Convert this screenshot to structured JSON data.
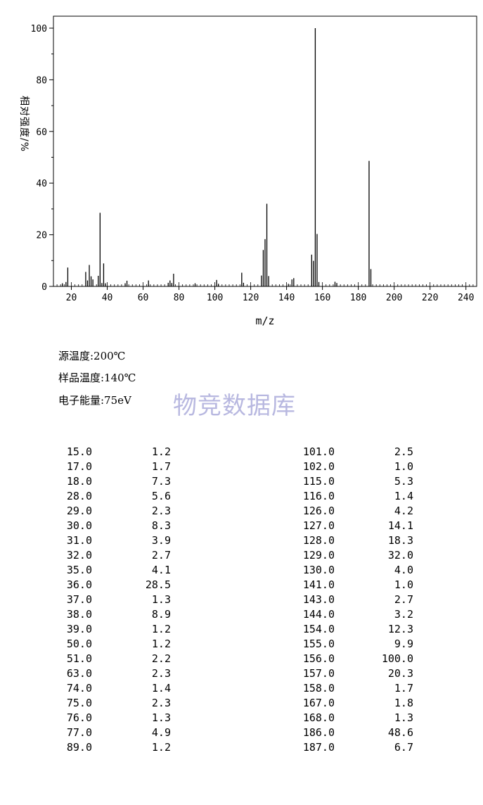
{
  "chart_data": {
    "type": "bar",
    "xlabel": "m/z",
    "ylabel": "相对强度/%",
    "xlim": [
      10,
      246
    ],
    "ylim": [
      0,
      105
    ],
    "xticks": [
      20,
      40,
      60,
      80,
      100,
      120,
      140,
      160,
      180,
      200,
      220,
      240
    ],
    "yticks": [
      0,
      20,
      40,
      60,
      80,
      100
    ],
    "peaks": [
      [
        15.0,
        1.2
      ],
      [
        17.0,
        1.7
      ],
      [
        18.0,
        7.3
      ],
      [
        28.0,
        5.6
      ],
      [
        29.0,
        2.3
      ],
      [
        30.0,
        8.3
      ],
      [
        31.0,
        3.9
      ],
      [
        32.0,
        2.7
      ],
      [
        35.0,
        4.1
      ],
      [
        36.0,
        28.5
      ],
      [
        37.0,
        1.3
      ],
      [
        38.0,
        8.9
      ],
      [
        39.0,
        1.2
      ],
      [
        50.0,
        1.2
      ],
      [
        51.0,
        2.2
      ],
      [
        63.0,
        2.3
      ],
      [
        74.0,
        1.4
      ],
      [
        75.0,
        2.3
      ],
      [
        76.0,
        1.3
      ],
      [
        77.0,
        4.9
      ],
      [
        89.0,
        1.2
      ],
      [
        101.0,
        2.5
      ],
      [
        102.0,
        1.0
      ],
      [
        115.0,
        5.3
      ],
      [
        116.0,
        1.4
      ],
      [
        126.0,
        4.2
      ],
      [
        127.0,
        14.1
      ],
      [
        128.0,
        18.3
      ],
      [
        129.0,
        32.0
      ],
      [
        130.0,
        4.0
      ],
      [
        141.0,
        1.0
      ],
      [
        143.0,
        2.7
      ],
      [
        144.0,
        3.2
      ],
      [
        154.0,
        12.3
      ],
      [
        155.0,
        9.9
      ],
      [
        156.0,
        100.0
      ],
      [
        157.0,
        20.3
      ],
      [
        158.0,
        1.7
      ],
      [
        167.0,
        1.8
      ],
      [
        168.0,
        1.3
      ],
      [
        186.0,
        48.6
      ],
      [
        187.0,
        6.7
      ]
    ]
  },
  "info": {
    "source_temp": "源温度:200℃",
    "sample_temp": "样品温度:140℃",
    "electron_energy": "电子能量:75eV"
  },
  "watermark": "物竞数据库",
  "peak_table": {
    "left": [
      {
        "mz": "15.0",
        "ab": "1.2"
      },
      {
        "mz": "17.0",
        "ab": "1.7"
      },
      {
        "mz": "18.0",
        "ab": "7.3"
      },
      {
        "mz": "28.0",
        "ab": "5.6"
      },
      {
        "mz": "29.0",
        "ab": "2.3"
      },
      {
        "mz": "30.0",
        "ab": "8.3"
      },
      {
        "mz": "31.0",
        "ab": "3.9"
      },
      {
        "mz": "32.0",
        "ab": "2.7"
      },
      {
        "mz": "35.0",
        "ab": "4.1"
      },
      {
        "mz": "36.0",
        "ab": "28.5"
      },
      {
        "mz": "37.0",
        "ab": "1.3"
      },
      {
        "mz": "38.0",
        "ab": "8.9"
      },
      {
        "mz": "39.0",
        "ab": "1.2"
      },
      {
        "mz": "50.0",
        "ab": "1.2"
      },
      {
        "mz": "51.0",
        "ab": "2.2"
      },
      {
        "mz": "63.0",
        "ab": "2.3"
      },
      {
        "mz": "74.0",
        "ab": "1.4"
      },
      {
        "mz": "75.0",
        "ab": "2.3"
      },
      {
        "mz": "76.0",
        "ab": "1.3"
      },
      {
        "mz": "77.0",
        "ab": "4.9"
      },
      {
        "mz": "89.0",
        "ab": "1.2"
      }
    ],
    "right": [
      {
        "mz": "101.0",
        "ab": "2.5"
      },
      {
        "mz": "102.0",
        "ab": "1.0"
      },
      {
        "mz": "115.0",
        "ab": "5.3"
      },
      {
        "mz": "116.0",
        "ab": "1.4"
      },
      {
        "mz": "126.0",
        "ab": "4.2"
      },
      {
        "mz": "127.0",
        "ab": "14.1"
      },
      {
        "mz": "128.0",
        "ab": "18.3"
      },
      {
        "mz": "129.0",
        "ab": "32.0"
      },
      {
        "mz": "130.0",
        "ab": "4.0"
      },
      {
        "mz": "141.0",
        "ab": "1.0"
      },
      {
        "mz": "143.0",
        "ab": "2.7"
      },
      {
        "mz": "144.0",
        "ab": "3.2"
      },
      {
        "mz": "154.0",
        "ab": "12.3"
      },
      {
        "mz": "155.0",
        "ab": "9.9"
      },
      {
        "mz": "156.0",
        "ab": "100.0"
      },
      {
        "mz": "157.0",
        "ab": "20.3"
      },
      {
        "mz": "158.0",
        "ab": "1.7"
      },
      {
        "mz": "167.0",
        "ab": "1.8"
      },
      {
        "mz": "168.0",
        "ab": "1.3"
      },
      {
        "mz": "186.0",
        "ab": "48.6"
      },
      {
        "mz": "187.0",
        "ab": "6.7"
      }
    ]
  }
}
